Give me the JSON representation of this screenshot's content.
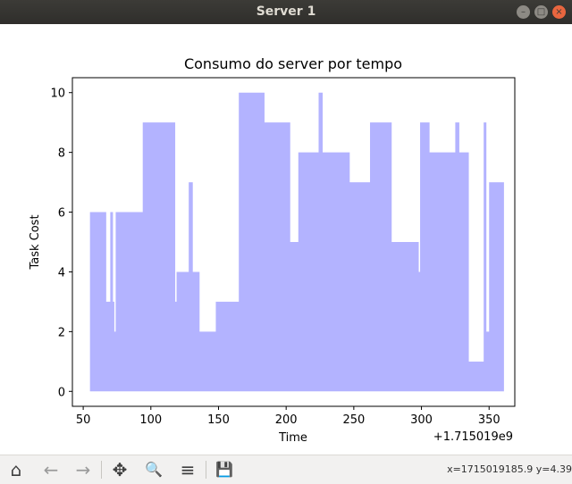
{
  "window": {
    "title": "Server 1"
  },
  "toolbar": {
    "coords": "x=1715019185.9 y=4.39",
    "buttons": [
      {
        "name": "home-icon",
        "glyph": "⌂"
      },
      {
        "name": "back-icon",
        "glyph": "←"
      },
      {
        "name": "forward-icon",
        "glyph": "→"
      },
      {
        "name": "pan-icon",
        "glyph": "✥"
      },
      {
        "name": "zoom-icon",
        "glyph": "🔍"
      },
      {
        "name": "configure-subplots-icon",
        "glyph": "≡"
      },
      {
        "name": "save-icon",
        "glyph": "💾"
      }
    ]
  },
  "chart_data": {
    "type": "area",
    "title": "Consumo do server por tempo",
    "xlabel": "Time",
    "ylabel": "Task Cost",
    "x_offset_label": "+1.715019e9",
    "xticks": [
      50,
      100,
      150,
      200,
      250,
      300,
      350
    ],
    "yticks": [
      0,
      2,
      4,
      6,
      8,
      10
    ],
    "xlim": [
      42,
      369
    ],
    "ylim": [
      -0.5,
      10.5
    ],
    "color": "#b3b3ff",
    "grid": false,
    "step_points": [
      [
        55,
        6
      ],
      [
        67,
        6
      ],
      [
        67,
        3
      ],
      [
        70,
        3
      ],
      [
        70,
        6
      ],
      [
        72,
        6
      ],
      [
        72,
        3
      ],
      [
        73,
        3
      ],
      [
        73,
        2
      ],
      [
        74,
        2
      ],
      [
        74,
        6
      ],
      [
        94,
        6
      ],
      [
        94,
        9
      ],
      [
        118,
        9
      ],
      [
        118,
        3
      ],
      [
        119,
        3
      ],
      [
        119,
        4
      ],
      [
        128,
        4
      ],
      [
        128,
        7
      ],
      [
        131,
        7
      ],
      [
        131,
        4
      ],
      [
        136,
        4
      ],
      [
        136,
        2
      ],
      [
        148,
        2
      ],
      [
        148,
        3
      ],
      [
        165,
        3
      ],
      [
        165,
        10
      ],
      [
        184,
        10
      ],
      [
        184,
        9
      ],
      [
        203,
        9
      ],
      [
        203,
        5
      ],
      [
        209,
        5
      ],
      [
        209,
        8
      ],
      [
        224,
        8
      ],
      [
        224,
        10
      ],
      [
        227,
        10
      ],
      [
        227,
        8
      ],
      [
        247,
        8
      ],
      [
        247,
        7
      ],
      [
        262,
        7
      ],
      [
        262,
        9
      ],
      [
        278,
        9
      ],
      [
        278,
        5
      ],
      [
        298,
        5
      ],
      [
        298,
        4
      ],
      [
        299,
        4
      ],
      [
        299,
        9
      ],
      [
        306,
        9
      ],
      [
        306,
        8
      ],
      [
        325,
        8
      ],
      [
        325,
        9
      ],
      [
        328,
        9
      ],
      [
        328,
        8
      ],
      [
        335,
        8
      ],
      [
        335,
        1
      ],
      [
        346,
        1
      ],
      [
        346,
        9
      ],
      [
        348,
        9
      ],
      [
        348,
        2
      ],
      [
        350,
        2
      ],
      [
        350,
        7
      ],
      [
        361,
        7
      ],
      [
        361,
        0
      ]
    ],
    "baseline": 0
  }
}
